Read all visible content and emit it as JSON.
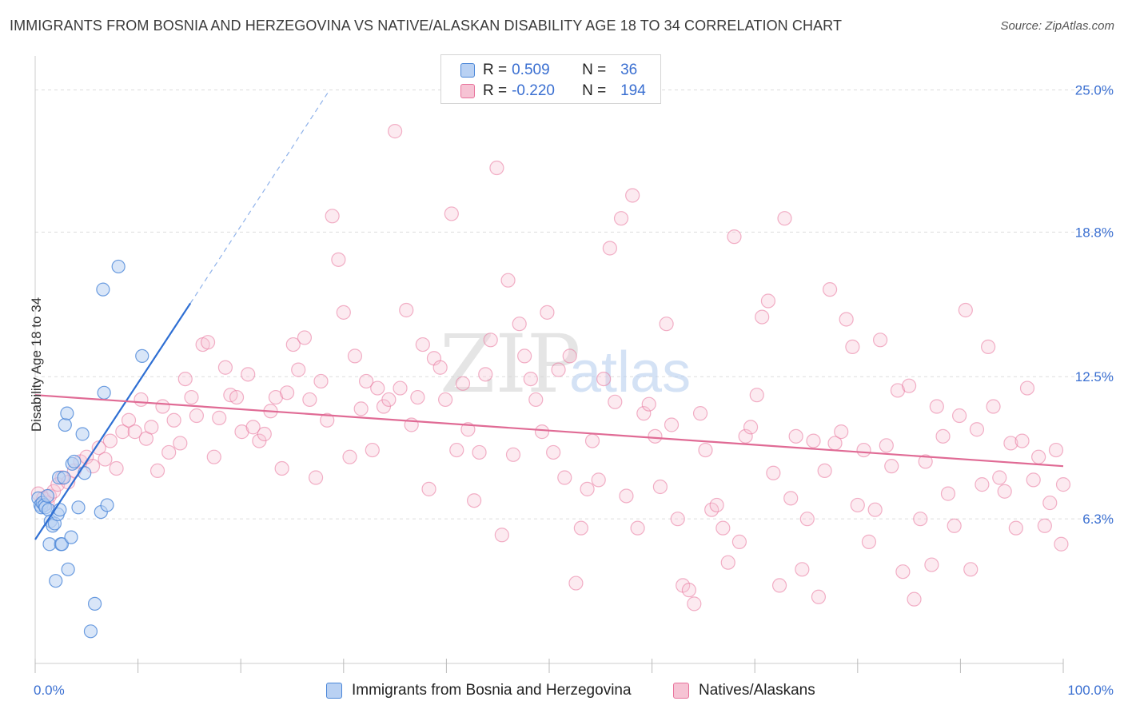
{
  "title": "IMMIGRANTS FROM BOSNIA AND HERZEGOVINA VS NATIVE/ALASKAN DISABILITY AGE 18 TO 34 CORRELATION CHART",
  "source": "Source: ZipAtlas.com",
  "watermark": {
    "zip": "ZIP",
    "atlas": "atlas"
  },
  "colors": {
    "blue": "#4a86d8",
    "blue_fill": "#b9d1f3",
    "pink": "#e8729b",
    "pink_fill": "#f6c3d4",
    "axis_label": "#3a6fd1",
    "grid": "#dddddd"
  },
  "legend": {
    "rows": [
      {
        "r_label": "R =",
        "r_value": "0.509",
        "n_label": "N =",
        "n_value": "36"
      },
      {
        "r_label": "R =",
        "r_value": "-0.220",
        "n_label": "N =",
        "n_value": "194"
      }
    ]
  },
  "bottom_legend": [
    "Immigrants from Bosnia and Herzegovina",
    "Natives/Alaskans"
  ],
  "chart_data": {
    "type": "scatter",
    "xlabel": "",
    "ylabel": "Disability Age 18 to 34",
    "xlim": [
      0,
      100
    ],
    "ylim": [
      0,
      26.2
    ],
    "x_tick_labels": [
      "0.0%",
      "100.0%"
    ],
    "y_ticks": [
      6.3,
      12.5,
      18.8,
      25.0
    ],
    "y_tick_labels": [
      "6.3%",
      "12.5%",
      "18.8%",
      "25.0%"
    ],
    "grid": true,
    "legend_position": "top-center",
    "series": [
      {
        "name": "Immigrants from Bosnia and Herzegovina",
        "color": "#4a86d8",
        "trend": {
          "x0": 0.0,
          "y0": 5.4,
          "x1": 15.1,
          "y1": 15.7,
          "dashed_to_x": 28.5,
          "dashed_to_y": 24.9
        },
        "points": [
          [
            0.3,
            7.2
          ],
          [
            0.5,
            6.9
          ],
          [
            0.6,
            6.8
          ],
          [
            0.7,
            7.0
          ],
          [
            0.9,
            6.9
          ],
          [
            1.0,
            6.8
          ],
          [
            1.2,
            7.3
          ],
          [
            1.3,
            6.7
          ],
          [
            1.5,
            6.2
          ],
          [
            1.4,
            5.2
          ],
          [
            1.7,
            6.0
          ],
          [
            1.9,
            6.1
          ],
          [
            2.0,
            3.6
          ],
          [
            2.2,
            6.5
          ],
          [
            2.3,
            8.1
          ],
          [
            2.4,
            6.7
          ],
          [
            2.5,
            5.2
          ],
          [
            2.6,
            5.2
          ],
          [
            2.8,
            8.1
          ],
          [
            2.9,
            10.4
          ],
          [
            3.1,
            10.9
          ],
          [
            3.2,
            4.1
          ],
          [
            3.5,
            5.5
          ],
          [
            3.6,
            8.7
          ],
          [
            3.8,
            8.8
          ],
          [
            4.2,
            6.8
          ],
          [
            4.6,
            10.0
          ],
          [
            4.8,
            8.3
          ],
          [
            5.4,
            1.4
          ],
          [
            5.8,
            2.6
          ],
          [
            6.4,
            6.6
          ],
          [
            6.6,
            16.3
          ],
          [
            6.7,
            11.8
          ],
          [
            7.0,
            6.9
          ],
          [
            8.1,
            17.3
          ],
          [
            10.4,
            13.4
          ]
        ]
      },
      {
        "name": "Natives/Alaskans",
        "color": "#e8729b",
        "trend": {
          "x0": 0.0,
          "y0": 11.7,
          "x1": 100.0,
          "y1": 8.6
        },
        "points": [
          [
            0.3,
            7.4
          ],
          [
            0.8,
            7.2
          ],
          [
            1.2,
            7.0
          ],
          [
            1.4,
            7.3
          ],
          [
            1.8,
            7.5
          ],
          [
            2.2,
            7.8
          ],
          [
            2.6,
            8.1
          ],
          [
            3.2,
            7.9
          ],
          [
            3.8,
            8.4
          ],
          [
            4.4,
            8.8
          ],
          [
            5.0,
            9.0
          ],
          [
            5.6,
            8.6
          ],
          [
            6.2,
            9.4
          ],
          [
            6.8,
            8.9
          ],
          [
            7.3,
            9.7
          ],
          [
            7.9,
            8.5
          ],
          [
            8.5,
            10.1
          ],
          [
            9.1,
            10.6
          ],
          [
            9.7,
            10.1
          ],
          [
            10.3,
            11.5
          ],
          [
            10.8,
            9.8
          ],
          [
            11.3,
            10.3
          ],
          [
            11.9,
            8.4
          ],
          [
            12.4,
            11.2
          ],
          [
            13.0,
            9.2
          ],
          [
            13.5,
            10.6
          ],
          [
            14.1,
            9.6
          ],
          [
            14.6,
            12.4
          ],
          [
            15.2,
            11.6
          ],
          [
            15.7,
            10.8
          ],
          [
            16.3,
            13.9
          ],
          [
            16.8,
            14.0
          ],
          [
            17.4,
            9.0
          ],
          [
            17.9,
            10.7
          ],
          [
            18.5,
            12.9
          ],
          [
            19.0,
            11.7
          ],
          [
            19.6,
            11.6
          ],
          [
            20.1,
            10.1
          ],
          [
            20.7,
            12.6
          ],
          [
            21.2,
            10.3
          ],
          [
            21.8,
            9.7
          ],
          [
            22.3,
            10.0
          ],
          [
            22.9,
            11.0
          ],
          [
            23.4,
            11.6
          ],
          [
            24.0,
            8.5
          ],
          [
            24.5,
            11.8
          ],
          [
            25.1,
            13.9
          ],
          [
            25.6,
            12.8
          ],
          [
            26.2,
            14.2
          ],
          [
            26.7,
            11.5
          ],
          [
            27.3,
            8.1
          ],
          [
            27.8,
            12.3
          ],
          [
            28.4,
            10.6
          ],
          [
            28.9,
            19.5
          ],
          [
            29.5,
            17.6
          ],
          [
            30.0,
            15.3
          ],
          [
            30.6,
            9.0
          ],
          [
            31.1,
            13.4
          ],
          [
            31.7,
            11.1
          ],
          [
            32.2,
            12.3
          ],
          [
            32.8,
            9.3
          ],
          [
            33.3,
            12.0
          ],
          [
            33.9,
            11.2
          ],
          [
            34.4,
            11.5
          ],
          [
            35.0,
            23.2
          ],
          [
            35.5,
            12.0
          ],
          [
            36.1,
            15.4
          ],
          [
            36.6,
            10.4
          ],
          [
            37.2,
            11.6
          ],
          [
            37.7,
            13.9
          ],
          [
            38.3,
            7.6
          ],
          [
            38.8,
            13.3
          ],
          [
            39.4,
            12.9
          ],
          [
            39.9,
            11.5
          ],
          [
            40.5,
            19.6
          ],
          [
            41.0,
            9.3
          ],
          [
            41.6,
            12.2
          ],
          [
            42.1,
            10.2
          ],
          [
            42.7,
            7.1
          ],
          [
            43.2,
            9.2
          ],
          [
            43.8,
            12.6
          ],
          [
            44.3,
            14.1
          ],
          [
            44.9,
            21.6
          ],
          [
            45.4,
            5.6
          ],
          [
            46.0,
            16.7
          ],
          [
            46.5,
            9.1
          ],
          [
            47.1,
            14.8
          ],
          [
            47.6,
            13.4
          ],
          [
            48.2,
            12.4
          ],
          [
            48.7,
            11.5
          ],
          [
            49.3,
            10.1
          ],
          [
            49.8,
            15.3
          ],
          [
            50.4,
            9.2
          ],
          [
            50.9,
            12.8
          ],
          [
            51.5,
            8.1
          ],
          [
            52.0,
            13.4
          ],
          [
            52.6,
            3.5
          ],
          [
            53.1,
            5.9
          ],
          [
            53.7,
            7.6
          ],
          [
            54.2,
            9.7
          ],
          [
            54.8,
            8.0
          ],
          [
            55.3,
            12.4
          ],
          [
            55.9,
            18.1
          ],
          [
            56.4,
            11.4
          ],
          [
            57.0,
            19.4
          ],
          [
            57.5,
            7.3
          ],
          [
            58.1,
            20.4
          ],
          [
            58.6,
            5.9
          ],
          [
            59.2,
            10.9
          ],
          [
            59.7,
            11.3
          ],
          [
            60.3,
            9.9
          ],
          [
            60.8,
            7.7
          ],
          [
            61.4,
            14.8
          ],
          [
            61.9,
            10.4
          ],
          [
            62.5,
            6.3
          ],
          [
            63.0,
            3.4
          ],
          [
            63.6,
            3.2
          ],
          [
            64.1,
            2.6
          ],
          [
            64.7,
            10.9
          ],
          [
            65.2,
            9.3
          ],
          [
            65.8,
            6.7
          ],
          [
            66.3,
            6.9
          ],
          [
            66.9,
            5.9
          ],
          [
            67.4,
            4.4
          ],
          [
            68.0,
            18.6
          ],
          [
            68.5,
            5.3
          ],
          [
            69.1,
            9.9
          ],
          [
            69.6,
            10.3
          ],
          [
            70.2,
            11.7
          ],
          [
            70.7,
            15.1
          ],
          [
            71.3,
            15.8
          ],
          [
            71.8,
            8.3
          ],
          [
            72.4,
            3.4
          ],
          [
            72.9,
            19.4
          ],
          [
            73.5,
            7.2
          ],
          [
            74.0,
            9.9
          ],
          [
            74.6,
            4.1
          ],
          [
            75.1,
            6.3
          ],
          [
            75.7,
            9.7
          ],
          [
            76.2,
            2.9
          ],
          [
            76.8,
            8.4
          ],
          [
            77.3,
            16.3
          ],
          [
            77.8,
            9.6
          ],
          [
            78.4,
            10.1
          ],
          [
            78.9,
            15.0
          ],
          [
            79.5,
            13.8
          ],
          [
            80.0,
            6.9
          ],
          [
            80.6,
            9.3
          ],
          [
            81.1,
            5.3
          ],
          [
            81.7,
            6.7
          ],
          [
            82.2,
            14.1
          ],
          [
            82.8,
            9.5
          ],
          [
            83.3,
            8.6
          ],
          [
            83.9,
            11.9
          ],
          [
            84.4,
            4.0
          ],
          [
            85.0,
            12.1
          ],
          [
            85.5,
            2.8
          ],
          [
            86.1,
            6.3
          ],
          [
            86.6,
            8.8
          ],
          [
            87.2,
            4.3
          ],
          [
            87.7,
            11.2
          ],
          [
            88.3,
            9.9
          ],
          [
            88.8,
            7.4
          ],
          [
            89.4,
            6.0
          ],
          [
            89.9,
            10.8
          ],
          [
            90.5,
            15.4
          ],
          [
            91.0,
            4.1
          ],
          [
            91.6,
            10.2
          ],
          [
            92.1,
            7.8
          ],
          [
            92.7,
            13.8
          ],
          [
            93.2,
            11.2
          ],
          [
            93.8,
            8.1
          ],
          [
            94.3,
            7.5
          ],
          [
            94.9,
            9.6
          ],
          [
            95.4,
            5.9
          ],
          [
            96.0,
            9.7
          ],
          [
            96.5,
            12.0
          ],
          [
            97.1,
            8.0
          ],
          [
            97.6,
            9.0
          ],
          [
            98.2,
            6.0
          ],
          [
            98.7,
            7.0
          ],
          [
            99.3,
            9.3
          ],
          [
            99.8,
            5.2
          ],
          [
            100.0,
            7.8
          ]
        ]
      }
    ]
  }
}
